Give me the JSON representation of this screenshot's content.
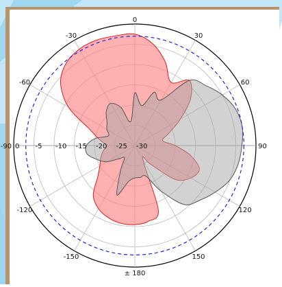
{
  "chart_data": {
    "type": "polar-area",
    "angular_ticks": [
      {
        "angle": 0,
        "label": "0"
      },
      {
        "angle": 30,
        "label": "30"
      },
      {
        "angle": 60,
        "label": "60"
      },
      {
        "angle": 90,
        "label": "90"
      },
      {
        "angle": 120,
        "label": "120"
      },
      {
        "angle": 150,
        "label": "150"
      },
      {
        "angle": 180,
        "label": "± 180"
      },
      {
        "angle": -150,
        "label": "-150"
      },
      {
        "angle": -120,
        "label": "-120"
      },
      {
        "angle": -90,
        "label": "-90"
      },
      {
        "angle": -60,
        "label": "-60"
      },
      {
        "angle": -30,
        "label": "-30"
      }
    ],
    "radial_ticks": [
      0,
      -5,
      -10,
      -15,
      -20,
      -25,
      -30
    ],
    "radial_labels": [
      "0",
      "-5",
      "-10",
      "-15",
      "-20",
      "-25",
      "-30"
    ],
    "radial_range_db": [
      -30,
      0
    ],
    "reference_circle_db": -3,
    "angular_grid_step_deg": 30,
    "grid": true,
    "colors": {
      "series1_fill": "#ff8080",
      "series1_line": "#d42020",
      "series2_fill": "#a8a8a8",
      "series2_line": "#555555",
      "reference": "#2020e0",
      "grid": "#bbbbbb"
    },
    "series": [
      {
        "angles_deg": [
          -180,
          -170,
          -160,
          -150,
          -140,
          -130,
          -120,
          -110,
          -100,
          -90,
          -80,
          -70,
          -60,
          -50,
          -40,
          -30,
          -20,
          -10,
          0,
          10,
          20,
          30,
          40,
          50,
          60,
          70,
          80,
          90,
          100,
          110,
          120,
          130,
          140,
          150,
          160,
          170
        ],
        "values_db": [
          -10.5,
          -10.5,
          -11,
          -12,
          -14,
          -18,
          -20,
          -21,
          -22,
          -23,
          -21,
          -18,
          -11,
          -6,
          -3.5,
          -2.5,
          -2.3,
          -2.5,
          -2.5,
          -4.5,
          -8,
          -12,
          -9,
          -12,
          -17,
          -21,
          -23,
          -20,
          -16,
          -13,
          -14,
          -17,
          -24,
          -26,
          -13,
          -11
        ]
      },
      {
        "angles_deg": [
          -180,
          -170,
          -160,
          -150,
          -140,
          -130,
          -120,
          -110,
          -100,
          -90,
          -80,
          -70,
          -60,
          -50,
          -40,
          -30,
          -20,
          -10,
          0,
          10,
          20,
          30,
          40,
          50,
          60,
          70,
          80,
          90,
          100,
          110,
          120,
          130,
          140,
          150,
          160,
          170
        ],
        "values_db": [
          -22,
          -21,
          -17,
          -23,
          -26,
          -25,
          -22,
          -20,
          -18,
          -18,
          -20,
          -23,
          -22,
          -21,
          -19,
          -18,
          -20,
          -24,
          -17,
          -20,
          -16,
          -17,
          -9,
          -7,
          -5,
          -3.5,
          -3,
          -3.5,
          -4,
          -5,
          -7,
          -9,
          -11,
          -17,
          -22,
          -22
        ]
      }
    ]
  }
}
